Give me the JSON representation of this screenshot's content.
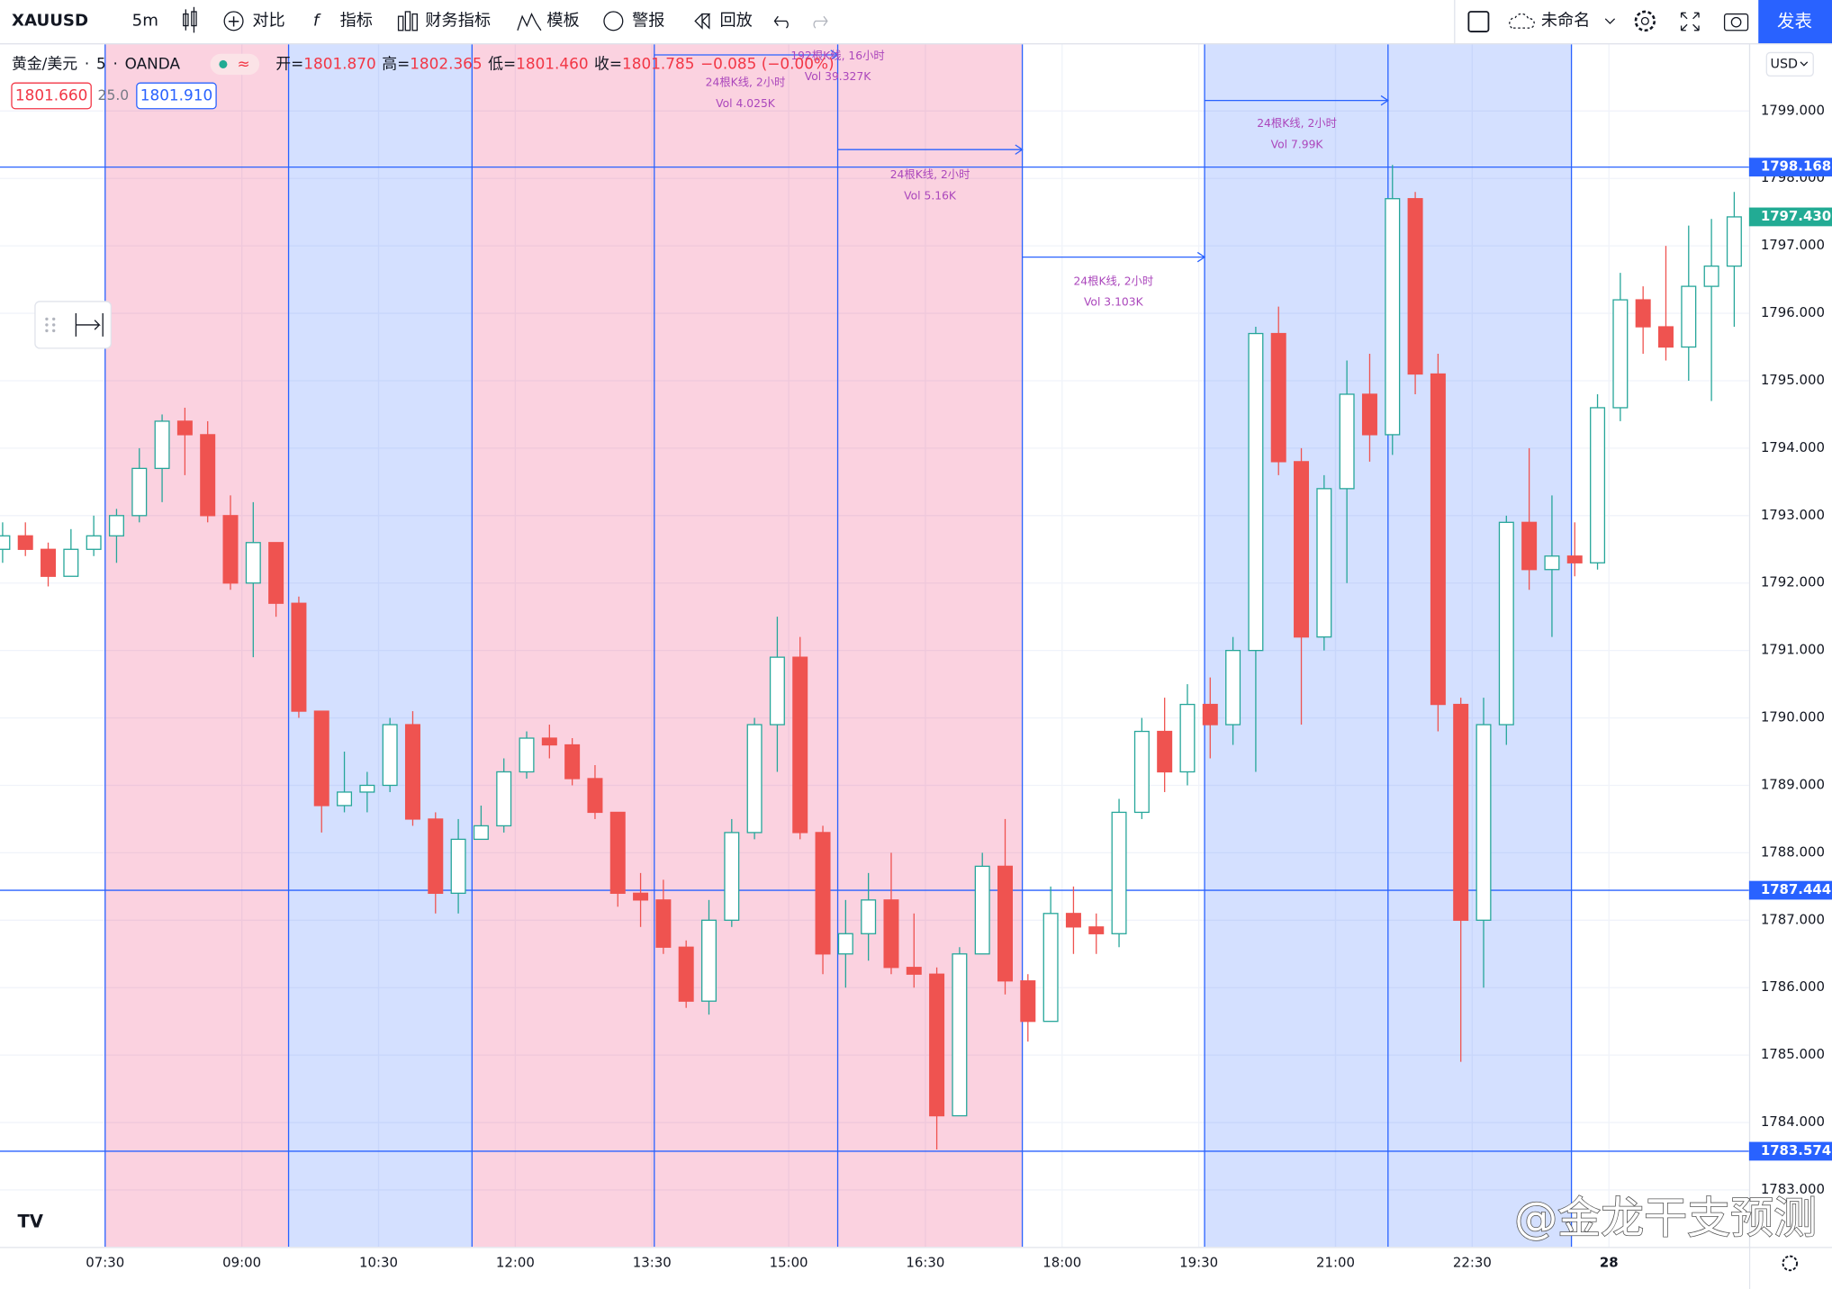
{
  "toolbar": {
    "symbol": "XAUUSD",
    "interval": "5m",
    "items": [
      "对比",
      "指标",
      "财务指标",
      "模板",
      "警报",
      "回放"
    ],
    "layout_name": "未命名",
    "publish": "发表"
  },
  "legend": {
    "symbol": "黄金/美元",
    "interval": "5",
    "source": "OANDA",
    "open_label": "开=",
    "open": "1801.870",
    "high_label": "高=",
    "high": "1802.365",
    "low_label": "低=",
    "low": "1801.460",
    "close_label": "收=",
    "close": "1801.785",
    "change": "−0.085 (−0.00%)",
    "bid": "1801.660",
    "spread": "25.0",
    "ask": "1801.910"
  },
  "currency": "USD",
  "range_labels": [
    {
      "bars": "192根K线, 16小时",
      "volume": "Vol 39.327K"
    },
    {
      "bars": "24根K线, 2小时",
      "volume": "Vol 4.025K"
    },
    {
      "bars": "24根K线, 2小时",
      "volume": "Vol 5.16K"
    },
    {
      "bars": "24根K线, 2小时",
      "volume": "Vol 3.103K"
    },
    {
      "bars": "24根K线, 2小时",
      "volume": "Vol 7.99K"
    }
  ],
  "watermark": "@金龙干支预测",
  "chart_data": {
    "type": "candlestick",
    "xlim": [
      -0.115,
      76.65
    ],
    "ylim": [
      1782.155,
      1800.005
    ],
    "xticks": [
      {
        "value": 4.5,
        "label": "07:30"
      },
      {
        "value": 10.5,
        "label": "09:00"
      },
      {
        "value": 16.5,
        "label": "10:30"
      },
      {
        "value": 22.5,
        "label": "12:00"
      },
      {
        "value": 28.5,
        "label": "13:30"
      },
      {
        "value": 34.5,
        "label": "15:00"
      },
      {
        "value": 40.5,
        "label": "16:30"
      },
      {
        "value": 46.5,
        "label": "18:00"
      },
      {
        "value": 52.5,
        "label": "19:30"
      },
      {
        "value": 58.5,
        "label": "21:00"
      },
      {
        "value": 64.5,
        "label": "22:30"
      },
      {
        "value": 70.5,
        "label": "28"
      }
    ],
    "yticks": [
      {
        "value": 1783,
        "label": "1783.000"
      },
      {
        "value": 1784,
        "label": "1784.000"
      },
      {
        "value": 1785,
        "label": "1785.000"
      },
      {
        "value": 1786,
        "label": "1786.000"
      },
      {
        "value": 1787,
        "label": "1787.000"
      },
      {
        "value": 1788,
        "label": "1788.000"
      },
      {
        "value": 1789,
        "label": "1789.000"
      },
      {
        "value": 1790,
        "label": "1790.000"
      },
      {
        "value": 1791,
        "label": "1791.000"
      },
      {
        "value": 1792,
        "label": "1792.000"
      },
      {
        "value": 1793,
        "label": "1793.000"
      },
      {
        "value": 1794,
        "label": "1794.000"
      },
      {
        "value": 1795,
        "label": "1795.000"
      },
      {
        "value": 1796,
        "label": "1796.000"
      },
      {
        "value": 1797,
        "label": "1797.000"
      },
      {
        "value": 1798,
        "label": "1798.000"
      },
      {
        "value": 1799,
        "label": "1799.000"
      }
    ],
    "grid": true,
    "up_color": "#26a69a",
    "down_color": "#ef5350",
    "line_color": "#2962ff",
    "last_color": "#22ab94",
    "hlines": [
      1798.168,
      1787.444,
      1783.574
    ],
    "last_price": {
      "value": 1797.43,
      "label": "1797.430"
    },
    "x": [
      0,
      1,
      2,
      3,
      4,
      5,
      6,
      7,
      8,
      9,
      10,
      11,
      12,
      13,
      14,
      15,
      16,
      17,
      18,
      19,
      20,
      21,
      22,
      23,
      24,
      25,
      26,
      27,
      28,
      29,
      30,
      31,
      32,
      33,
      34,
      35,
      36,
      37,
      38,
      39,
      40,
      41,
      42,
      43,
      44,
      45,
      46,
      47,
      48,
      49,
      50,
      51,
      52,
      53,
      54,
      55,
      56,
      57,
      58,
      59,
      60,
      61,
      62,
      63,
      64,
      65,
      66,
      67,
      68,
      69,
      70,
      71,
      72,
      73,
      74,
      75,
      76
    ],
    "open": [
      1792.5,
      1792.7,
      1792.5,
      1792.1,
      1792.5,
      1792.7,
      1793.0,
      1793.7,
      1794.4,
      1794.2,
      1793.0,
      1792.0,
      1792.6,
      1791.7,
      1790.1,
      1788.7,
      1788.9,
      1789.0,
      1789.9,
      1788.5,
      1787.4,
      1788.2,
      1788.4,
      1789.2,
      1789.7,
      1789.6,
      1789.1,
      1788.6,
      1787.4,
      1787.3,
      1786.6,
      1785.8,
      1787.0,
      1788.3,
      1789.9,
      1790.9,
      1788.3,
      1786.5,
      1786.8,
      1787.3,
      1786.3,
      1786.2,
      1784.1,
      1786.5,
      1787.8,
      1786.1,
      1785.5,
      1787.1,
      1786.9,
      1786.8,
      1788.6,
      1789.8,
      1789.2,
      1790.2,
      1789.9,
      1791.0,
      1795.7,
      1793.8,
      1791.2,
      1793.4,
      1794.8,
      1794.2,
      1797.7,
      1795.1,
      1790.2,
      1787.0,
      1789.9,
      1792.9,
      1792.2,
      1792.4,
      1792.3,
      1794.6,
      1796.2,
      1795.8,
      1795.5,
      1796.4,
      1796.7
    ],
    "high": [
      1792.9,
      1792.9,
      1792.6,
      1792.8,
      1793.0,
      1793.1,
      1794.0,
      1794.5,
      1794.6,
      1794.4,
      1793.3,
      1793.2,
      1792.6,
      1791.8,
      1790.1,
      1789.5,
      1789.2,
      1790.0,
      1790.1,
      1788.6,
      1788.5,
      1788.7,
      1789.4,
      1789.8,
      1789.9,
      1789.7,
      1789.3,
      1788.6,
      1787.7,
      1787.6,
      1786.7,
      1787.3,
      1788.5,
      1790.0,
      1791.5,
      1791.2,
      1788.4,
      1787.3,
      1787.7,
      1788.0,
      1787.1,
      1786.3,
      1786.6,
      1788.0,
      1788.5,
      1786.2,
      1787.5,
      1787.5,
      1787.1,
      1788.8,
      1790.0,
      1790.3,
      1790.5,
      1790.6,
      1791.2,
      1795.8,
      1796.1,
      1794.0,
      1793.6,
      1795.3,
      1795.4,
      1798.2,
      1797.8,
      1795.4,
      1790.3,
      1790.3,
      1793.0,
      1794.0,
      1793.3,
      1792.9,
      1794.8,
      1796.6,
      1796.4,
      1797.0,
      1797.3,
      1797.4,
      1797.8
    ],
    "low": [
      1792.3,
      1792.4,
      1791.95,
      1792.1,
      1792.4,
      1792.3,
      1792.9,
      1793.2,
      1793.6,
      1792.9,
      1791.9,
      1790.9,
      1791.5,
      1790.0,
      1788.3,
      1788.6,
      1788.6,
      1788.9,
      1788.4,
      1787.1,
      1787.1,
      1788.2,
      1788.3,
      1789.1,
      1789.4,
      1789.0,
      1788.5,
      1787.2,
      1786.9,
      1786.5,
      1785.7,
      1785.6,
      1786.9,
      1788.2,
      1789.2,
      1788.2,
      1786.2,
      1786.0,
      1786.4,
      1786.2,
      1786.0,
      1783.6,
      1784.1,
      1786.5,
      1785.9,
      1785.2,
      1785.5,
      1786.5,
      1786.5,
      1786.6,
      1788.5,
      1788.9,
      1789.0,
      1789.4,
      1789.6,
      1789.2,
      1793.6,
      1789.9,
      1791.0,
      1792.0,
      1793.8,
      1793.9,
      1794.8,
      1789.8,
      1784.9,
      1786.0,
      1789.6,
      1791.9,
      1791.2,
      1792.1,
      1792.2,
      1794.4,
      1795.4,
      1795.3,
      1795.0,
      1794.7,
      1795.8
    ],
    "close": [
      1792.7,
      1792.5,
      1792.1,
      1792.5,
      1792.7,
      1793.0,
      1793.7,
      1794.4,
      1794.2,
      1793.0,
      1792.0,
      1792.6,
      1791.7,
      1790.1,
      1788.7,
      1788.9,
      1789.0,
      1789.9,
      1788.5,
      1787.4,
      1788.2,
      1788.4,
      1789.2,
      1789.7,
      1789.6,
      1789.1,
      1788.6,
      1787.4,
      1787.3,
      1786.6,
      1785.8,
      1787.0,
      1788.3,
      1789.9,
      1790.9,
      1788.3,
      1786.5,
      1786.8,
      1787.3,
      1786.3,
      1786.2,
      1784.1,
      1786.5,
      1787.8,
      1786.1,
      1785.5,
      1787.1,
      1786.9,
      1786.8,
      1788.6,
      1789.8,
      1789.2,
      1790.2,
      1789.9,
      1791.0,
      1795.7,
      1793.8,
      1791.2,
      1793.4,
      1794.8,
      1794.2,
      1797.7,
      1795.1,
      1790.2,
      1787.0,
      1789.9,
      1792.9,
      1792.2,
      1792.4,
      1792.3,
      1794.6,
      1796.2,
      1795.8,
      1795.5,
      1796.4,
      1796.7,
      1797.43
    ]
  }
}
